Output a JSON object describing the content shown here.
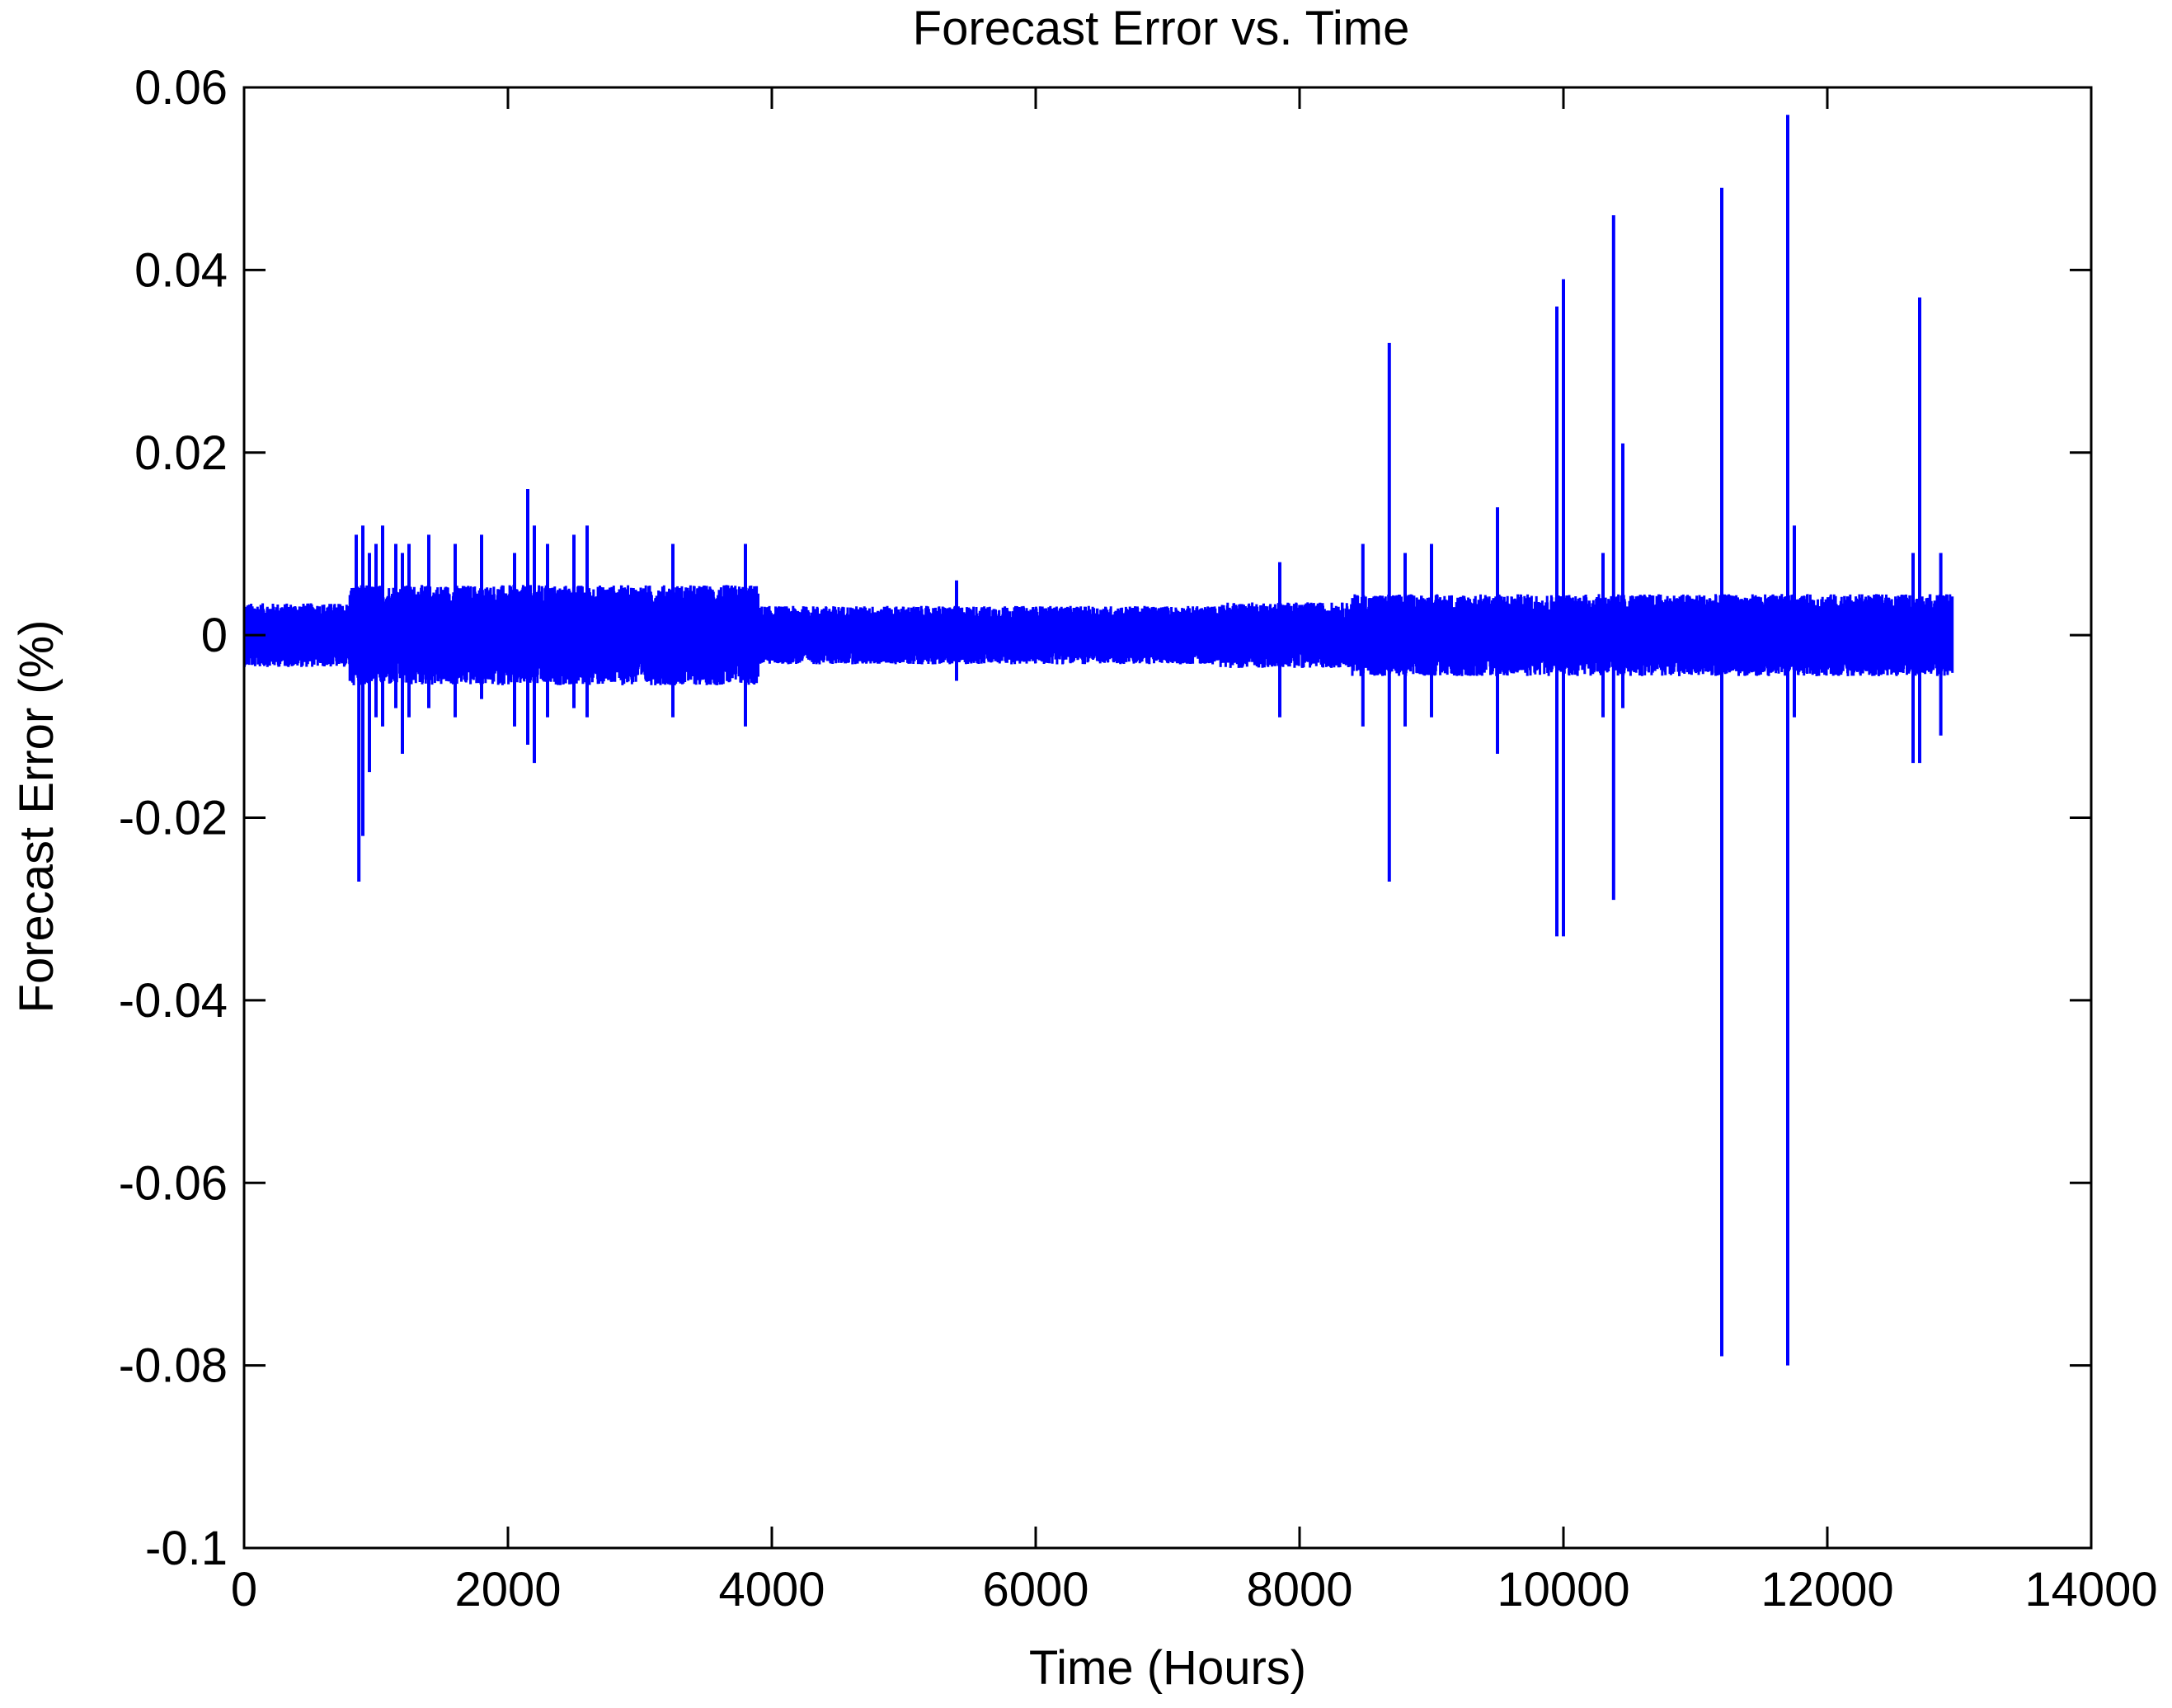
{
  "chart_data": {
    "type": "line",
    "title": "Forecast Error vs. Time",
    "xlabel": "Time (Hours)",
    "ylabel": "Forecast Error (%)",
    "xlim": [
      0,
      14000
    ],
    "ylim": [
      -0.1,
      0.06
    ],
    "xticks": [
      0,
      2000,
      4000,
      6000,
      8000,
      10000,
      12000,
      14000
    ],
    "xtick_labels": [
      "0",
      "2000",
      "4000",
      "6000",
      "8000",
      "10000",
      "12000",
      "14000"
    ],
    "yticks": [
      -0.1,
      -0.08,
      -0.06,
      -0.04,
      -0.02,
      0,
      0.02,
      0.04,
      0.06
    ],
    "ytick_labels": [
      "-0.1",
      "-0.08",
      "-0.06",
      "-0.04",
      "-0.02",
      "0",
      "0.02",
      "0.04",
      "0.06"
    ],
    "grid": false,
    "line_color": "#0000ff",
    "series": [
      {
        "x_range": [
          0,
          12950
        ],
        "spikes": [
          {
            "x": 850,
            "max": 0.011,
            "min": -0.004
          },
          {
            "x": 870,
            "max": 0.005,
            "min": -0.027
          },
          {
            "x": 900,
            "max": 0.012,
            "min": -0.022
          },
          {
            "x": 950,
            "max": 0.009,
            "min": -0.015
          },
          {
            "x": 1000,
            "max": 0.01,
            "min": -0.009
          },
          {
            "x": 1050,
            "max": 0.012,
            "min": -0.01
          },
          {
            "x": 1150,
            "max": 0.01,
            "min": -0.008
          },
          {
            "x": 1200,
            "max": 0.009,
            "min": -0.013
          },
          {
            "x": 1250,
            "max": 0.01,
            "min": -0.009
          },
          {
            "x": 1400,
            "max": 0.011,
            "min": -0.008
          },
          {
            "x": 1600,
            "max": 0.01,
            "min": -0.009
          },
          {
            "x": 1800,
            "max": 0.011,
            "min": -0.007
          },
          {
            "x": 2050,
            "max": 0.009,
            "min": -0.01
          },
          {
            "x": 2150,
            "max": 0.016,
            "min": -0.012
          },
          {
            "x": 2200,
            "max": 0.012,
            "min": -0.014
          },
          {
            "x": 2300,
            "max": 0.01,
            "min": -0.009
          },
          {
            "x": 2500,
            "max": 0.011,
            "min": -0.008
          },
          {
            "x": 2600,
            "max": 0.012,
            "min": -0.009
          },
          {
            "x": 3250,
            "max": 0.01,
            "min": -0.009
          },
          {
            "x": 3800,
            "max": 0.01,
            "min": -0.01
          },
          {
            "x": 5400,
            "max": 0.006,
            "min": -0.005
          },
          {
            "x": 7850,
            "max": 0.008,
            "min": -0.009
          },
          {
            "x": 8480,
            "max": 0.01,
            "min": -0.01
          },
          {
            "x": 8680,
            "max": 0.032,
            "min": -0.027
          },
          {
            "x": 8800,
            "max": 0.009,
            "min": -0.01
          },
          {
            "x": 9000,
            "max": 0.01,
            "min": -0.009
          },
          {
            "x": 9500,
            "max": 0.014,
            "min": -0.013
          },
          {
            "x": 9950,
            "max": 0.036,
            "min": -0.033
          },
          {
            "x": 10000,
            "max": 0.039,
            "min": -0.033
          },
          {
            "x": 10300,
            "max": 0.009,
            "min": -0.009
          },
          {
            "x": 10380,
            "max": 0.046,
            "min": -0.029
          },
          {
            "x": 10450,
            "max": 0.021,
            "min": -0.008
          },
          {
            "x": 11200,
            "max": 0.049,
            "min": -0.079
          },
          {
            "x": 11700,
            "max": 0.057,
            "min": -0.08
          },
          {
            "x": 11750,
            "max": 0.012,
            "min": -0.009
          },
          {
            "x": 12650,
            "max": 0.009,
            "min": -0.014
          },
          {
            "x": 12700,
            "max": 0.037,
            "min": -0.014
          },
          {
            "x": 12860,
            "max": 0.009,
            "min": -0.011
          }
        ]
      }
    ]
  }
}
